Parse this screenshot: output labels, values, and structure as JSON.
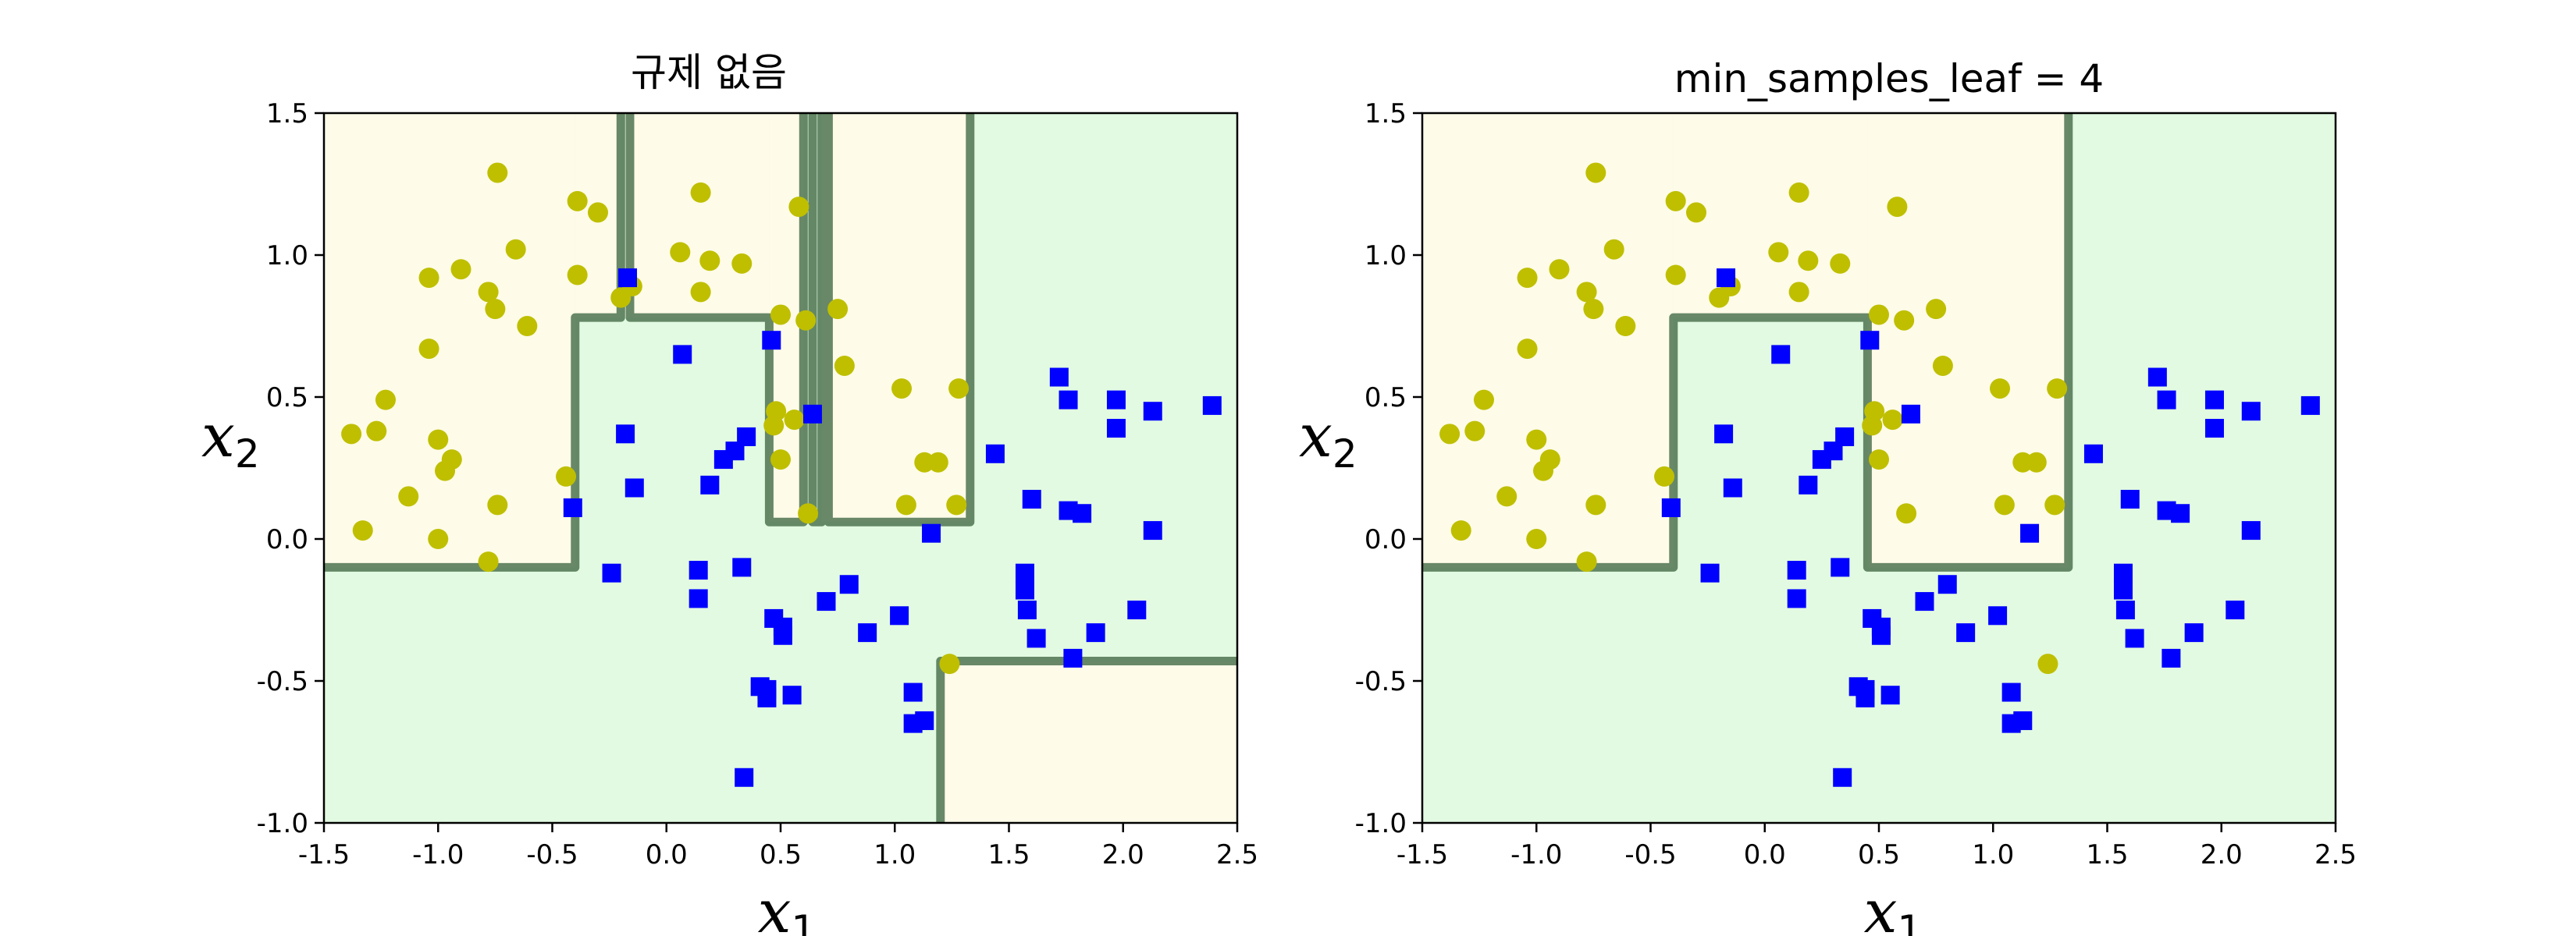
{
  "chart_data": [
    {
      "type": "scatter",
      "title": "규제 없음",
      "xlabel": "x",
      "xlabel_sub": "1",
      "ylabel": "x",
      "ylabel_sub": "2",
      "xlim": [
        -1.5,
        2.5
      ],
      "ylim": [
        -1.0,
        1.5
      ],
      "xticks": [
        "-1.5",
        "-1.0",
        "-0.5",
        "0.0",
        "0.5",
        "1.0",
        "1.5",
        "2.0",
        "2.5"
      ],
      "yticks": [
        "-1.0",
        "-0.5",
        "0.0",
        "0.5",
        "1.0",
        "1.5"
      ],
      "grid": false,
      "region_colors": {
        "class0": "#fefbe8",
        "class1": "#e2fae1"
      },
      "boundary_color": "#4d7350",
      "class0_regions": [
        [
          [
            -1.5,
            -0.1
          ],
          [
            -0.4,
            1.5
          ]
        ],
        [
          [
            -0.4,
            0.78
          ],
          [
            -0.2,
            1.5
          ]
        ],
        [
          [
            -0.18,
            0.78
          ],
          [
            0.45,
            1.5
          ]
        ],
        [
          [
            0.45,
            0.06
          ],
          [
            0.6,
            1.5
          ]
        ],
        [
          [
            0.68,
            0.06
          ],
          [
            1.33,
            1.5
          ]
        ],
        [
          [
            1.2,
            -1.0
          ],
          [
            2.5,
            -0.43
          ]
        ]
      ],
      "boundary_path": [
        [
          -1.5,
          -0.1
        ],
        [
          -0.4,
          -0.1
        ],
        [
          -0.4,
          0.78
        ],
        [
          -0.2,
          0.78
        ],
        [
          -0.2,
          1.5
        ],
        null,
        [
          -0.16,
          1.5
        ],
        [
          -0.16,
          0.78
        ],
        [
          0.45,
          0.78
        ],
        [
          0.45,
          0.06
        ],
        [
          0.6,
          0.06
        ],
        [
          0.6,
          1.5
        ],
        null,
        [
          0.64,
          1.5
        ],
        [
          0.64,
          0.06
        ],
        [
          0.68,
          0.06
        ],
        [
          0.68,
          1.5
        ],
        null,
        [
          0.71,
          1.5
        ],
        [
          0.71,
          0.06
        ],
        [
          1.33,
          0.06
        ],
        [
          1.33,
          1.5
        ],
        null,
        [
          1.2,
          -1.0
        ],
        [
          1.2,
          -0.43
        ],
        [
          2.5,
          -0.43
        ]
      ],
      "series": [
        {
          "marker": "circle",
          "color": "#bfbf00",
          "points": [
            [
              -1.38,
              0.37
            ],
            [
              -1.33,
              0.03
            ],
            [
              -1.27,
              0.38
            ],
            [
              -1.23,
              0.49
            ],
            [
              -1.13,
              0.15
            ],
            [
              -1.04,
              0.92
            ],
            [
              -1.04,
              0.67
            ],
            [
              -1.0,
              0.35
            ],
            [
              -1.0,
              0.0
            ],
            [
              -0.97,
              0.24
            ],
            [
              -0.94,
              0.28
            ],
            [
              -0.9,
              0.95
            ],
            [
              -0.78,
              -0.08
            ],
            [
              -0.78,
              0.87
            ],
            [
              -0.75,
              0.81
            ],
            [
              -0.74,
              1.29
            ],
            [
              -0.74,
              0.12
            ],
            [
              -0.66,
              1.02
            ],
            [
              -0.61,
              0.75
            ],
            [
              -0.44,
              0.22
            ],
            [
              -0.39,
              1.19
            ],
            [
              -0.39,
              0.93
            ],
            [
              -0.3,
              1.15
            ],
            [
              -0.2,
              0.85
            ],
            [
              -0.15,
              0.89
            ],
            [
              0.06,
              1.01
            ],
            [
              0.15,
              1.22
            ],
            [
              0.15,
              0.87
            ],
            [
              0.19,
              0.98
            ],
            [
              0.33,
              0.97
            ],
            [
              0.47,
              0.4
            ],
            [
              0.48,
              0.45
            ],
            [
              0.5,
              0.79
            ],
            [
              0.5,
              0.28
            ],
            [
              0.56,
              0.42
            ],
            [
              0.58,
              1.17
            ],
            [
              0.61,
              0.77
            ],
            [
              0.62,
              0.09
            ],
            [
              0.75,
              0.81
            ],
            [
              0.78,
              0.61
            ],
            [
              1.03,
              0.53
            ],
            [
              1.05,
              0.12
            ],
            [
              1.13,
              0.27
            ],
            [
              1.19,
              0.27
            ],
            [
              1.24,
              -0.44
            ],
            [
              1.27,
              0.12
            ],
            [
              1.28,
              0.53
            ]
          ]
        },
        {
          "marker": "square",
          "color": "#0000ff",
          "points": [
            [
              -0.41,
              0.11
            ],
            [
              -0.24,
              -0.12
            ],
            [
              -0.17,
              0.92
            ],
            [
              -0.18,
              0.37
            ],
            [
              -0.14,
              0.18
            ],
            [
              0.07,
              0.65
            ],
            [
              0.14,
              -0.11
            ],
            [
              0.14,
              -0.21
            ],
            [
              0.19,
              0.19
            ],
            [
              0.25,
              0.28
            ],
            [
              0.3,
              0.31
            ],
            [
              0.33,
              -0.1
            ],
            [
              0.34,
              -0.84
            ],
            [
              0.35,
              0.36
            ],
            [
              0.41,
              -0.52
            ],
            [
              0.44,
              -0.56
            ],
            [
              0.44,
              -0.53
            ],
            [
              0.46,
              0.7
            ],
            [
              0.47,
              -0.28
            ],
            [
              0.51,
              -0.31
            ],
            [
              0.51,
              -0.34
            ],
            [
              0.55,
              -0.55
            ],
            [
              0.64,
              0.44
            ],
            [
              0.7,
              -0.22
            ],
            [
              0.8,
              -0.16
            ],
            [
              0.88,
              -0.33
            ],
            [
              1.02,
              -0.27
            ],
            [
              1.08,
              -0.54
            ],
            [
              1.08,
              -0.65
            ],
            [
              1.13,
              -0.64
            ],
            [
              1.16,
              0.02
            ],
            [
              1.44,
              0.3
            ],
            [
              1.57,
              -0.12
            ],
            [
              1.57,
              -0.18
            ],
            [
              1.58,
              -0.25
            ],
            [
              1.6,
              0.14
            ],
            [
              1.62,
              -0.35
            ],
            [
              1.72,
              0.57
            ],
            [
              1.76,
              0.49
            ],
            [
              1.76,
              0.1
            ],
            [
              1.78,
              -0.42
            ],
            [
              1.82,
              0.09
            ],
            [
              1.88,
              -0.33
            ],
            [
              1.97,
              0.39
            ],
            [
              1.97,
              0.49
            ],
            [
              2.06,
              -0.25
            ],
            [
              2.13,
              0.45
            ],
            [
              2.13,
              0.03
            ],
            [
              2.39,
              0.47
            ]
          ]
        }
      ]
    },
    {
      "type": "scatter",
      "title": "min_samples_leaf = 4",
      "xlabel": "x",
      "xlabel_sub": "1",
      "ylabel": "x",
      "ylabel_sub": "2",
      "xlim": [
        -1.5,
        2.5
      ],
      "ylim": [
        -1.0,
        1.5
      ],
      "xticks": [
        "-1.5",
        "-1.0",
        "-0.5",
        "0.0",
        "0.5",
        "1.0",
        "1.5",
        "2.0",
        "2.5"
      ],
      "yticks": [
        "-1.0",
        "-0.5",
        "0.0",
        "0.5",
        "1.0",
        "1.5"
      ],
      "grid": false,
      "region_colors": {
        "class0": "#fefbe8",
        "class1": "#e2fae1"
      },
      "boundary_color": "#4d7350",
      "class0_regions": [
        [
          [
            -1.5,
            -0.1
          ],
          [
            -0.4,
            1.5
          ]
        ],
        [
          [
            -0.4,
            0.78
          ],
          [
            0.45,
            1.5
          ]
        ],
        [
          [
            0.45,
            -0.1
          ],
          [
            1.33,
            1.5
          ]
        ]
      ],
      "boundary_path": [
        [
          -1.5,
          -0.1
        ],
        [
          -0.4,
          -0.1
        ],
        [
          -0.4,
          0.78
        ],
        [
          0.45,
          0.78
        ],
        [
          0.45,
          -0.1
        ],
        [
          1.33,
          -0.1
        ],
        [
          1.33,
          1.5
        ]
      ],
      "series": [
        {
          "marker": "circle",
          "color": "#bfbf00",
          "points": [
            [
              -1.38,
              0.37
            ],
            [
              -1.33,
              0.03
            ],
            [
              -1.27,
              0.38
            ],
            [
              -1.23,
              0.49
            ],
            [
              -1.13,
              0.15
            ],
            [
              -1.04,
              0.92
            ],
            [
              -1.04,
              0.67
            ],
            [
              -1.0,
              0.35
            ],
            [
              -1.0,
              0.0
            ],
            [
              -0.97,
              0.24
            ],
            [
              -0.94,
              0.28
            ],
            [
              -0.9,
              0.95
            ],
            [
              -0.78,
              -0.08
            ],
            [
              -0.78,
              0.87
            ],
            [
              -0.75,
              0.81
            ],
            [
              -0.74,
              1.29
            ],
            [
              -0.74,
              0.12
            ],
            [
              -0.66,
              1.02
            ],
            [
              -0.61,
              0.75
            ],
            [
              -0.44,
              0.22
            ],
            [
              -0.39,
              1.19
            ],
            [
              -0.39,
              0.93
            ],
            [
              -0.3,
              1.15
            ],
            [
              -0.2,
              0.85
            ],
            [
              -0.15,
              0.89
            ],
            [
              0.06,
              1.01
            ],
            [
              0.15,
              1.22
            ],
            [
              0.15,
              0.87
            ],
            [
              0.19,
              0.98
            ],
            [
              0.33,
              0.97
            ],
            [
              0.47,
              0.4
            ],
            [
              0.48,
              0.45
            ],
            [
              0.5,
              0.79
            ],
            [
              0.5,
              0.28
            ],
            [
              0.56,
              0.42
            ],
            [
              0.58,
              1.17
            ],
            [
              0.61,
              0.77
            ],
            [
              0.62,
              0.09
            ],
            [
              0.75,
              0.81
            ],
            [
              0.78,
              0.61
            ],
            [
              1.03,
              0.53
            ],
            [
              1.05,
              0.12
            ],
            [
              1.13,
              0.27
            ],
            [
              1.19,
              0.27
            ],
            [
              1.24,
              -0.44
            ],
            [
              1.27,
              0.12
            ],
            [
              1.28,
              0.53
            ]
          ]
        },
        {
          "marker": "square",
          "color": "#0000ff",
          "points": [
            [
              -0.41,
              0.11
            ],
            [
              -0.24,
              -0.12
            ],
            [
              -0.17,
              0.92
            ],
            [
              -0.18,
              0.37
            ],
            [
              -0.14,
              0.18
            ],
            [
              0.07,
              0.65
            ],
            [
              0.14,
              -0.11
            ],
            [
              0.14,
              -0.21
            ],
            [
              0.19,
              0.19
            ],
            [
              0.25,
              0.28
            ],
            [
              0.3,
              0.31
            ],
            [
              0.33,
              -0.1
            ],
            [
              0.34,
              -0.84
            ],
            [
              0.35,
              0.36
            ],
            [
              0.41,
              -0.52
            ],
            [
              0.44,
              -0.56
            ],
            [
              0.44,
              -0.53
            ],
            [
              0.46,
              0.7
            ],
            [
              0.47,
              -0.28
            ],
            [
              0.51,
              -0.31
            ],
            [
              0.51,
              -0.34
            ],
            [
              0.55,
              -0.55
            ],
            [
              0.64,
              0.44
            ],
            [
              0.7,
              -0.22
            ],
            [
              0.8,
              -0.16
            ],
            [
              0.88,
              -0.33
            ],
            [
              1.02,
              -0.27
            ],
            [
              1.08,
              -0.54
            ],
            [
              1.08,
              -0.65
            ],
            [
              1.13,
              -0.64
            ],
            [
              1.16,
              0.02
            ],
            [
              1.44,
              0.3
            ],
            [
              1.57,
              -0.12
            ],
            [
              1.57,
              -0.18
            ],
            [
              1.58,
              -0.25
            ],
            [
              1.6,
              0.14
            ],
            [
              1.62,
              -0.35
            ],
            [
              1.72,
              0.57
            ],
            [
              1.76,
              0.49
            ],
            [
              1.76,
              0.1
            ],
            [
              1.78,
              -0.42
            ],
            [
              1.82,
              0.09
            ],
            [
              1.88,
              -0.33
            ],
            [
              1.97,
              0.39
            ],
            [
              1.97,
              0.49
            ],
            [
              2.06,
              -0.25
            ],
            [
              2.13,
              0.45
            ],
            [
              2.13,
              0.03
            ],
            [
              2.39,
              0.47
            ]
          ]
        }
      ]
    }
  ]
}
